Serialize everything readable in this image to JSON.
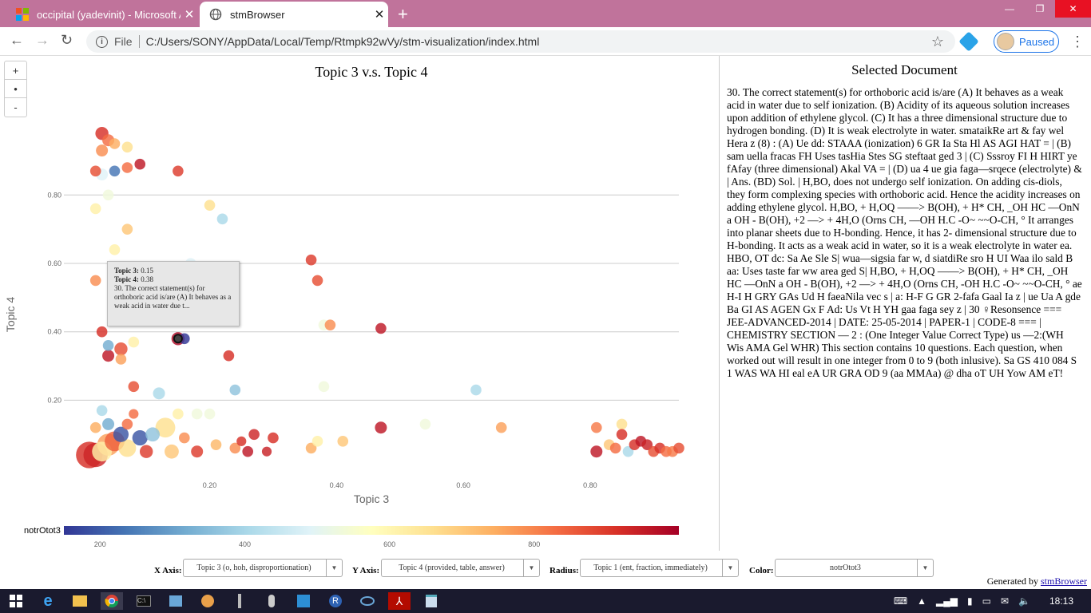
{
  "tabs": [
    {
      "title": "occipital (yadevinit) - Microsoft A",
      "active": false
    },
    {
      "title": "stmBrowser",
      "active": true
    }
  ],
  "address": {
    "scheme_label": "File",
    "url": "C:/Users/SONY/AppData/Local/Temp/Rtmpk92wVy/stm-visualization/index.html"
  },
  "profile": {
    "status": "Paused"
  },
  "zoom": {
    "plus": "+",
    "reset": "•",
    "minus": "-"
  },
  "chart_data": {
    "type": "scatter",
    "title": "Topic 3 v.s. Topic 4",
    "xlabel": "Topic 3",
    "ylabel": "Topic 4",
    "xlim": [
      -0.03,
      0.94
    ],
    "ylim": [
      -0.03,
      1.02
    ],
    "xticks": [
      "0.20",
      "0.40",
      "0.60",
      "0.80"
    ],
    "xtick_values": [
      0.2,
      0.4,
      0.6,
      0.8
    ],
    "yticks": [
      "0.20",
      "0.40",
      "0.60",
      "0.80"
    ],
    "ytick_values": [
      0.2,
      0.4,
      0.6,
      0.8
    ],
    "grid": true,
    "color_legend": {
      "label": "notrOtot3",
      "ticks": [
        "200",
        "400",
        "600",
        "800"
      ],
      "tick_values": [
        200,
        400,
        600,
        800
      ],
      "range": [
        150,
        1000
      ]
    },
    "points": [
      {
        "x": 0.01,
        "y": 0.04,
        "r": 0.9,
        "c": 0.9
      },
      {
        "x": 0.02,
        "y": 0.04,
        "r": 0.8,
        "c": 0.92
      },
      {
        "x": 0.03,
        "y": 0.05,
        "r": 0.6,
        "c": 0.55
      },
      {
        "x": 0.04,
        "y": 0.07,
        "r": 0.7,
        "c": 0.72
      },
      {
        "x": 0.05,
        "y": 0.08,
        "r": 0.6,
        "c": 0.82
      },
      {
        "x": 0.07,
        "y": 0.06,
        "r": 0.5,
        "c": 0.6
      },
      {
        "x": 0.06,
        "y": 0.1,
        "r": 0.4,
        "c": 0.05
      },
      {
        "x": 0.09,
        "y": 0.09,
        "r": 0.4,
        "c": 0.05
      },
      {
        "x": 0.11,
        "y": 0.1,
        "r": 0.35,
        "c": 0.25
      },
      {
        "x": 0.1,
        "y": 0.05,
        "r": 0.3,
        "c": 0.88
      },
      {
        "x": 0.13,
        "y": 0.12,
        "r": 0.6,
        "c": 0.6
      },
      {
        "x": 0.02,
        "y": 0.12,
        "r": 0.2,
        "c": 0.7
      },
      {
        "x": 0.04,
        "y": 0.13,
        "r": 0.25,
        "c": 0.2
      },
      {
        "x": 0.07,
        "y": 0.13,
        "r": 0.2,
        "c": 0.8
      },
      {
        "x": 0.14,
        "y": 0.05,
        "r": 0.35,
        "c": 0.65
      },
      {
        "x": 0.16,
        "y": 0.09,
        "r": 0.2,
        "c": 0.75
      },
      {
        "x": 0.18,
        "y": 0.05,
        "r": 0.25,
        "c": 0.88
      },
      {
        "x": 0.03,
        "y": 0.17,
        "r": 0.2,
        "c": 0.3
      },
      {
        "x": 0.08,
        "y": 0.16,
        "r": 0.15,
        "c": 0.8
      },
      {
        "x": 0.15,
        "y": 0.16,
        "r": 0.2,
        "c": 0.55
      },
      {
        "x": 0.12,
        "y": 0.22,
        "r": 0.25,
        "c": 0.3
      },
      {
        "x": 0.08,
        "y": 0.24,
        "r": 0.2,
        "c": 0.85
      },
      {
        "x": 0.04,
        "y": 0.33,
        "r": 0.25,
        "c": 0.95
      },
      {
        "x": 0.06,
        "y": 0.35,
        "r": 0.3,
        "c": 0.85
      },
      {
        "x": 0.03,
        "y": 0.4,
        "r": 0.2,
        "c": 0.9
      },
      {
        "x": 0.04,
        "y": 0.36,
        "r": 0.2,
        "c": 0.2
      },
      {
        "x": 0.08,
        "y": 0.37,
        "r": 0.2,
        "c": 0.55
      },
      {
        "x": 0.06,
        "y": 0.32,
        "r": 0.2,
        "c": 0.72
      },
      {
        "x": 0.15,
        "y": 0.38,
        "r": 0.3,
        "c": 0.98
      },
      {
        "x": 0.23,
        "y": 0.33,
        "r": 0.2,
        "c": 0.9
      },
      {
        "x": 0.02,
        "y": 0.55,
        "r": 0.2,
        "c": 0.75
      },
      {
        "x": 0.05,
        "y": 0.64,
        "r": 0.2,
        "c": 0.55
      },
      {
        "x": 0.07,
        "y": 0.7,
        "r": 0.2,
        "c": 0.65
      },
      {
        "x": 0.02,
        "y": 0.76,
        "r": 0.2,
        "c": 0.55
      },
      {
        "x": 0.04,
        "y": 0.8,
        "r": 0.2,
        "c": 0.45
      },
      {
        "x": 0.03,
        "y": 0.86,
        "r": 0.25,
        "c": 0.4
      },
      {
        "x": 0.05,
        "y": 0.87,
        "r": 0.2,
        "c": 0.1
      },
      {
        "x": 0.02,
        "y": 0.87,
        "r": 0.2,
        "c": 0.85
      },
      {
        "x": 0.07,
        "y": 0.88,
        "r": 0.2,
        "c": 0.8
      },
      {
        "x": 0.09,
        "y": 0.89,
        "r": 0.2,
        "c": 0.95
      },
      {
        "x": 0.03,
        "y": 0.93,
        "r": 0.25,
        "c": 0.75
      },
      {
        "x": 0.05,
        "y": 0.95,
        "r": 0.2,
        "c": 0.7
      },
      {
        "x": 0.07,
        "y": 0.94,
        "r": 0.2,
        "c": 0.6
      },
      {
        "x": 0.03,
        "y": 0.98,
        "r": 0.3,
        "c": 0.9
      },
      {
        "x": 0.04,
        "y": 0.96,
        "r": 0.25,
        "c": 0.8
      },
      {
        "x": 0.15,
        "y": 0.87,
        "r": 0.2,
        "c": 0.88
      },
      {
        "x": 0.2,
        "y": 0.77,
        "r": 0.2,
        "c": 0.6
      },
      {
        "x": 0.22,
        "y": 0.73,
        "r": 0.2,
        "c": 0.3
      },
      {
        "x": 0.17,
        "y": 0.6,
        "r": 0.2,
        "c": 0.4
      },
      {
        "x": 0.24,
        "y": 0.23,
        "r": 0.2,
        "c": 0.25
      },
      {
        "x": 0.2,
        "y": 0.16,
        "r": 0.2,
        "c": 0.45
      },
      {
        "x": 0.21,
        "y": 0.07,
        "r": 0.2,
        "c": 0.68
      },
      {
        "x": 0.24,
        "y": 0.06,
        "r": 0.2,
        "c": 0.75
      },
      {
        "x": 0.25,
        "y": 0.08,
        "r": 0.15,
        "c": 0.9
      },
      {
        "x": 0.27,
        "y": 0.1,
        "r": 0.2,
        "c": 0.92
      },
      {
        "x": 0.26,
        "y": 0.05,
        "r": 0.2,
        "c": 0.95
      },
      {
        "x": 0.29,
        "y": 0.05,
        "r": 0.15,
        "c": 0.93
      },
      {
        "x": 0.3,
        "y": 0.09,
        "r": 0.2,
        "c": 0.9
      },
      {
        "x": 0.36,
        "y": 0.06,
        "r": 0.2,
        "c": 0.7
      },
      {
        "x": 0.37,
        "y": 0.08,
        "r": 0.2,
        "c": 0.55
      },
      {
        "x": 0.36,
        "y": 0.61,
        "r": 0.2,
        "c": 0.88
      },
      {
        "x": 0.37,
        "y": 0.55,
        "r": 0.2,
        "c": 0.85
      },
      {
        "x": 0.38,
        "y": 0.42,
        "r": 0.2,
        "c": 0.45
      },
      {
        "x": 0.39,
        "y": 0.42,
        "r": 0.2,
        "c": 0.75
      },
      {
        "x": 0.38,
        "y": 0.24,
        "r": 0.2,
        "c": 0.45
      },
      {
        "x": 0.41,
        "y": 0.08,
        "r": 0.2,
        "c": 0.65
      },
      {
        "x": 0.47,
        "y": 0.41,
        "r": 0.2,
        "c": 0.95
      },
      {
        "x": 0.47,
        "y": 0.12,
        "r": 0.25,
        "c": 0.95
      },
      {
        "x": 0.16,
        "y": 0.38,
        "r": 0.2,
        "c": 0.0
      },
      {
        "x": 0.18,
        "y": 0.16,
        "r": 0.2,
        "c": 0.45
      },
      {
        "x": 0.54,
        "y": 0.13,
        "r": 0.2,
        "c": 0.45
      },
      {
        "x": 0.62,
        "y": 0.23,
        "r": 0.2,
        "c": 0.3
      },
      {
        "x": 0.66,
        "y": 0.12,
        "r": 0.2,
        "c": 0.72
      },
      {
        "x": 0.81,
        "y": 0.12,
        "r": 0.2,
        "c": 0.78
      },
      {
        "x": 0.85,
        "y": 0.13,
        "r": 0.2,
        "c": 0.6
      },
      {
        "x": 0.81,
        "y": 0.05,
        "r": 0.25,
        "c": 0.95
      },
      {
        "x": 0.83,
        "y": 0.07,
        "r": 0.2,
        "c": 0.65
      },
      {
        "x": 0.85,
        "y": 0.1,
        "r": 0.2,
        "c": 0.9
      },
      {
        "x": 0.86,
        "y": 0.05,
        "r": 0.2,
        "c": 0.3
      },
      {
        "x": 0.84,
        "y": 0.06,
        "r": 0.2,
        "c": 0.8
      },
      {
        "x": 0.87,
        "y": 0.07,
        "r": 0.2,
        "c": 0.9
      },
      {
        "x": 0.88,
        "y": 0.08,
        "r": 0.2,
        "c": 0.95
      },
      {
        "x": 0.89,
        "y": 0.07,
        "r": 0.2,
        "c": 0.93
      },
      {
        "x": 0.9,
        "y": 0.05,
        "r": 0.2,
        "c": 0.85
      },
      {
        "x": 0.91,
        "y": 0.06,
        "r": 0.2,
        "c": 0.9
      },
      {
        "x": 0.92,
        "y": 0.05,
        "r": 0.2,
        "c": 0.8
      },
      {
        "x": 0.93,
        "y": 0.05,
        "r": 0.2,
        "c": 0.78
      },
      {
        "x": 0.94,
        "y": 0.06,
        "r": 0.2,
        "c": 0.85
      }
    ],
    "selected": {
      "x": 0.15,
      "y": 0.38
    }
  },
  "tooltip": {
    "t3_label": "Topic 3:",
    "t3_value": "0.15",
    "t4_label": "Topic 4:",
    "t4_value": "0.38",
    "text": "30. The correct statement(s) for orthoboric acid is/are (A) It behaves as a weak acid in water due t..."
  },
  "document": {
    "title": "Selected Document",
    "text": "30. The correct statement(s) for orthoboric acid is/are (A) It behaves as a weak acid in water due to self ionization. (B) Acidity of its aqueous solution increases upon addition of ethylene glycol. (C) It has a three dimensional structure due to hydrogen bonding. (D) It is weak electrolyte in water. smataikRe art & fay wel Hera z (8) : (A) Ue dd: STAAA (ionization) 6 GR Ia Sta Hl AS AGI HAT = | (B) sam uella fracas FH Uses tasHia Stes SG steftaat ged 3 | (C) Sssroy FI H HIRT ye fAfay (three dimensional) Akal VA = | (D) ua 4 ue gia faga—srqece (electrolyte) & | Ans. (BD) Sol. | H,BO, does not undergo self ionization. On adding cis-diols, they form complexing species with orthoboric acid. Hence the acidity increases on adding ethylene glycol. H,BO, + H,OQ ——> B(OH), + H* CH, _OH HC —OnN a OH - B(OH), +2 —> + 4H,O (Orns CH, —OH H.C -O~ ~~O-CH, ° It arranges into planar sheets due to H-bonding. Hence, it has 2- dimensional structure due to H-bonding. It acts as a weak acid in water, so it is a weak electrolyte in water ea. HBO, OT dc: Sa Ae Sle S| wua—sigsia far w, d siatdiRe sro H UI Waa ilo sald B aa: Uses taste far ww area ged S| H,BO, + H,OQ ——> B(OH), + H* CH, _OH HC —OnN a OH - B(OH), +2 —> + 4H,O (Orns CH, -OH H.C -O~ ~~O-CH, ° ae H-I H GRY GAs Ud H faeaNila vec s | a: H-F G GR 2-fafa Gaal Ia z | ue Ua A gde Ba GI AS AGEN Gx F Ad: Us Vt H YH gaa faga sey z | 30 ♀Resonsence === JEE-ADVANCED-2014 | DATE: 25-05-2014 | PAPER-1 | CODE-8 === | CHEMISTRY SECTION — 2 : (One Integer Value Correct Type) us —2:(WH Wis AMA Gel WHR) This section contains 10 questions. Each question, when worked out will result in one integer from 0 to 9 (both inlusive). Sa GS 410 084 S 1 WAS WA HI eal eA UR GRA OD 9 (aa MMAa) @ dha oT UH Yow AM eT!"
  },
  "controls": {
    "x_label": "X Axis:",
    "x_value": "Topic 3 (o, hoh, disproportionation)",
    "y_label": "Y Axis:",
    "y_value": "Topic 4 (provided, table, answer)",
    "r_label": "Radius:",
    "r_value": "Topic 1 (ent, fraction, immediately)",
    "c_label": "Color:",
    "c_value": "notrOtot3"
  },
  "footer": {
    "generated": "Generated by",
    "link": "stmBrowser"
  },
  "clock": "18:13"
}
